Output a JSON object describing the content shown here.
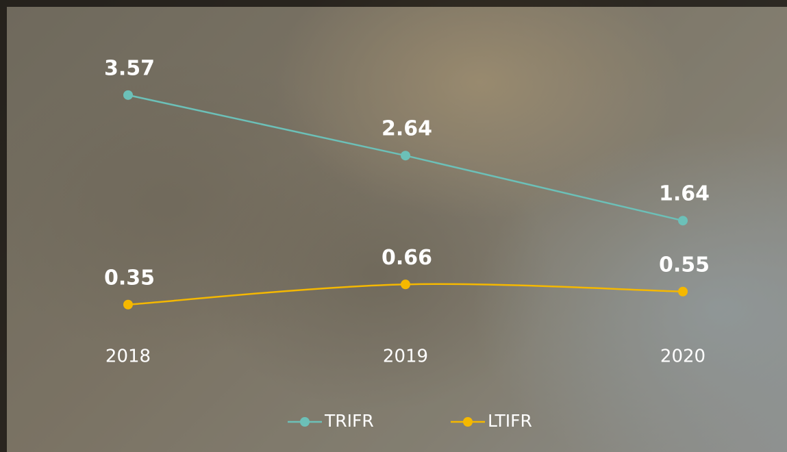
{
  "chart_data": {
    "type": "line",
    "categories": [
      "2018",
      "2019",
      "2020"
    ],
    "series": [
      {
        "name": "TRIFR",
        "color": "#6cc0b8",
        "values": [
          3.57,
          2.64,
          1.64
        ]
      },
      {
        "name": "LTIFR",
        "color": "#f5b800",
        "values": [
          0.35,
          0.66,
          0.55
        ]
      }
    ]
  }
}
